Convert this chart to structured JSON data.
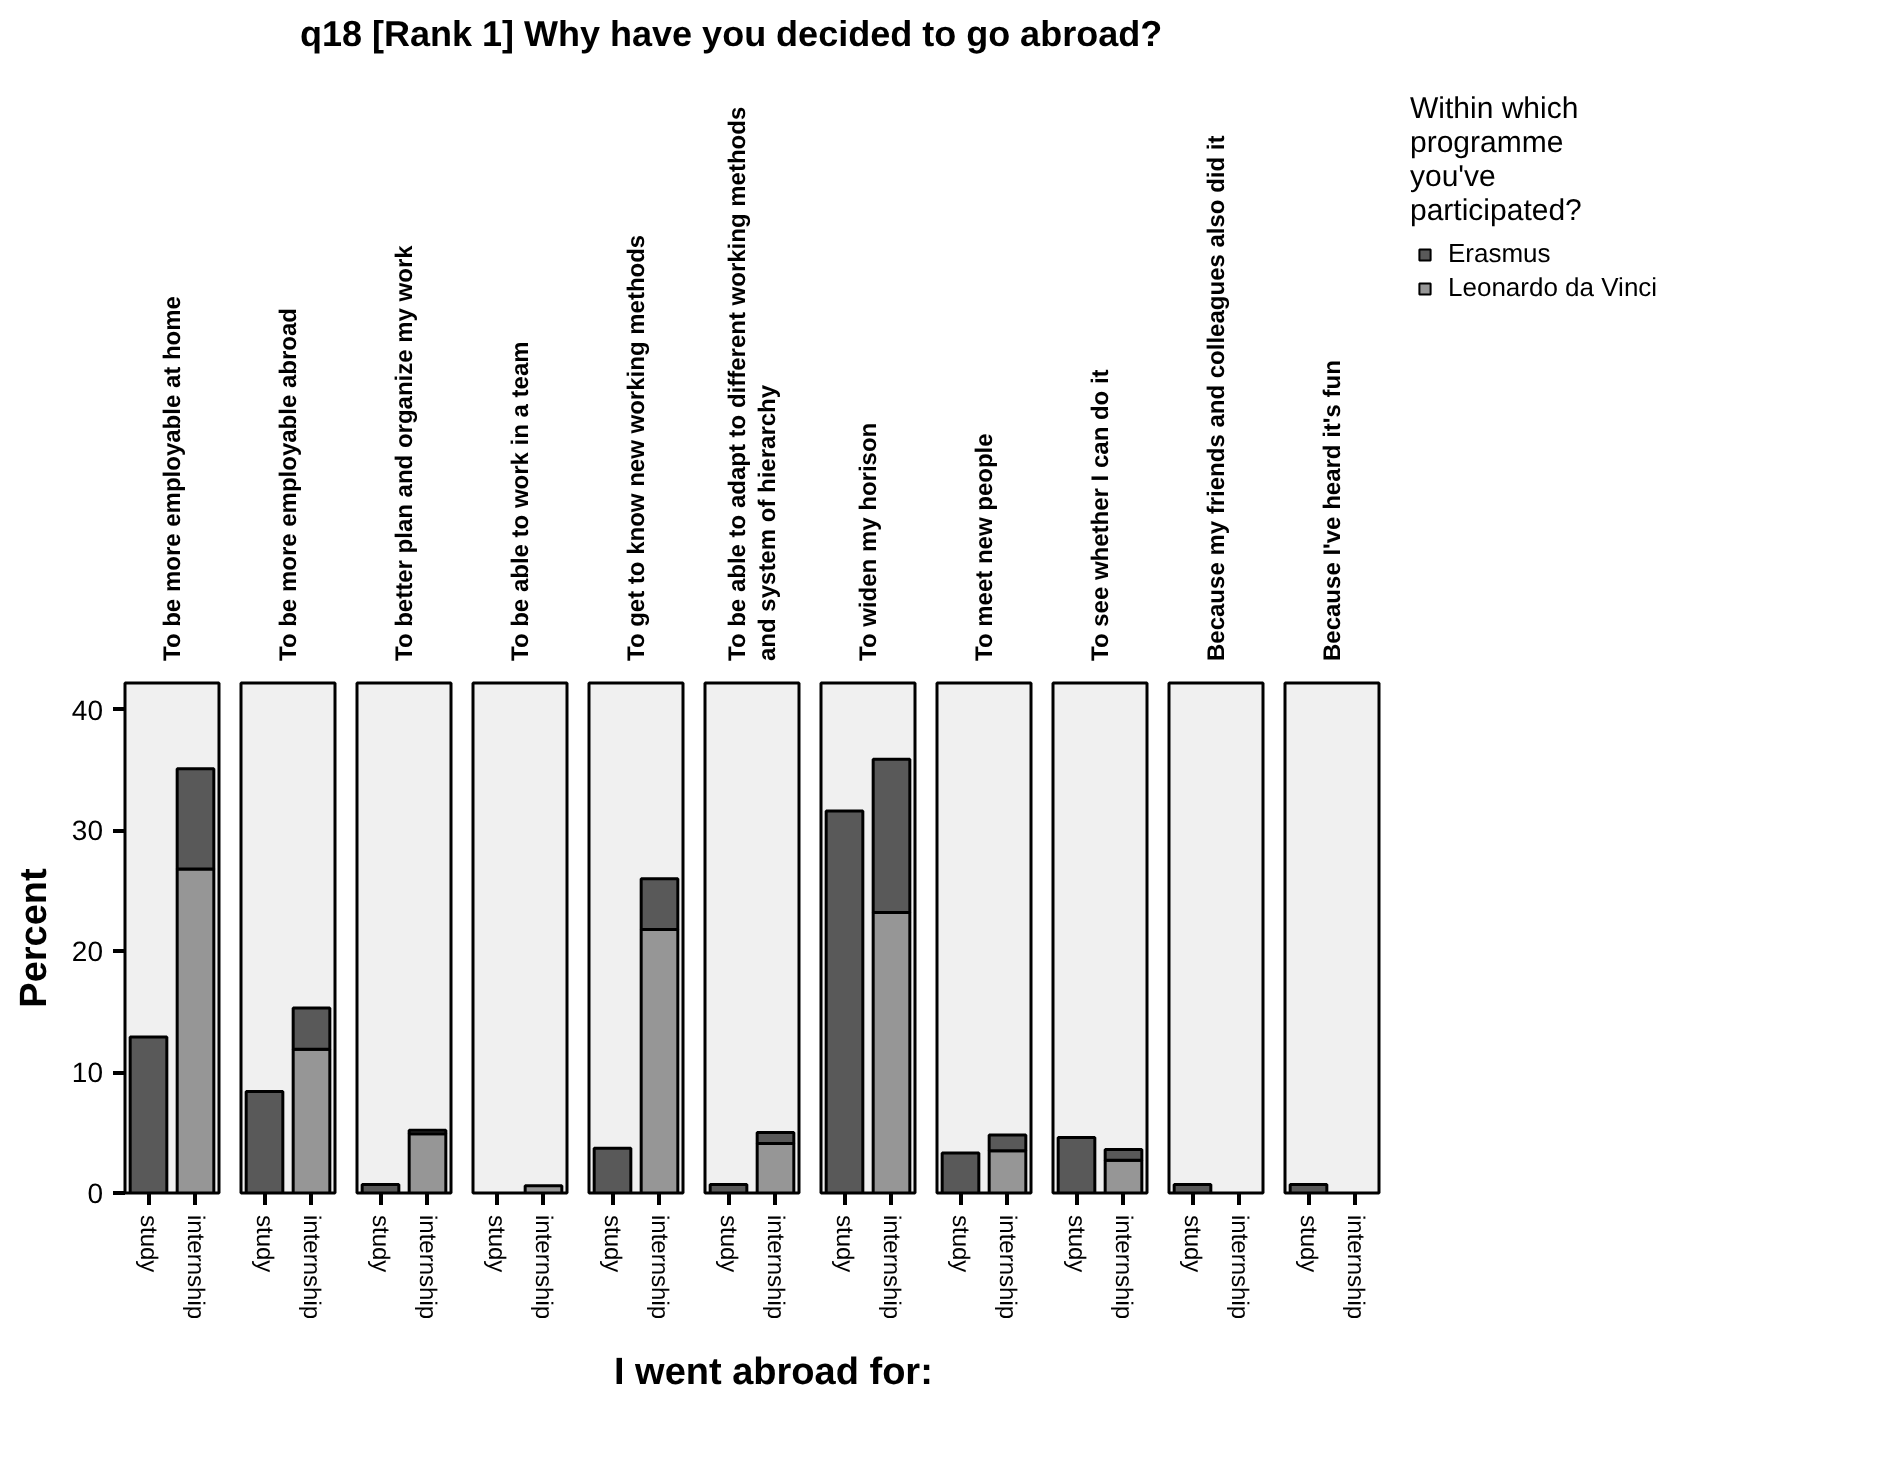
{
  "chart_data": [
    {
      "type": "bar",
      "stacked": true,
      "title": "To be more employable at home",
      "annotations": [
        "q18 [Rank 1] Why have you decided to go abroad?"
      ],
      "ylabel": "Percent",
      "categories": [
        "study",
        "internship"
      ],
      "ylim": [
        0,
        42.2
      ],
      "yticks": [
        0,
        10,
        20,
        30,
        40
      ],
      "grid": false,
      "series": [
        {
          "color": "#969696",
          "values": [
            null,
            26.8
          ]
        },
        {
          "color": "#595959",
          "values": [
            12.9,
            8.3
          ]
        }
      ]
    },
    {
      "type": "bar",
      "stacked": true,
      "title": "To be more employable abroad",
      "categories": [
        "study",
        "internship"
      ],
      "ylim": [
        0,
        42.2
      ],
      "tick_labels": "x",
      "grid": false,
      "series": [
        {
          "color": "#969696",
          "values": [
            null,
            11.9
          ]
        },
        {
          "color": "#595959",
          "values": [
            8.4,
            3.4
          ]
        }
      ]
    },
    {
      "type": "bar",
      "stacked": true,
      "title": "To better plan and organize my work",
      "categories": [
        "study",
        "internship"
      ],
      "ylim": [
        0,
        42.2
      ],
      "tick_labels": "x",
      "grid": false,
      "series": [
        {
          "color": "#969696",
          "values": [
            null,
            4.9
          ]
        },
        {
          "color": "#595959",
          "values": [
            0.7,
            0.3
          ]
        }
      ]
    },
    {
      "type": "bar",
      "stacked": true,
      "title": "To be able to work in a team",
      "categories": [
        "study",
        "internship"
      ],
      "ylim": [
        0,
        42.2
      ],
      "tick_labels": "x",
      "grid": false,
      "series": [
        {
          "color": "#969696",
          "values": [
            null,
            0.6
          ]
        }
      ]
    },
    {
      "type": "bar",
      "stacked": true,
      "title": "To get to know new working methods",
      "categories": [
        "study",
        "internship"
      ],
      "ylim": [
        0,
        42.2
      ],
      "tick_labels": "x",
      "grid": false,
      "series": [
        {
          "color": "#969696",
          "values": [
            null,
            21.8
          ]
        },
        {
          "color": "#595959",
          "values": [
            3.7,
            4.2
          ]
        }
      ]
    },
    {
      "type": "bar",
      "stacked": true,
      "title": "To be able to adapt to different working methods\nand system of hierarchy",
      "xlabel": "I went abroad for:",
      "categories": [
        "study",
        "internship"
      ],
      "ylim": [
        0,
        42.2
      ],
      "tick_labels": "x",
      "grid": false,
      "series": [
        {
          "color": "#969696",
          "values": [
            null,
            4.1
          ]
        },
        {
          "color": "#595959",
          "values": [
            0.7,
            0.9
          ]
        }
      ]
    },
    {
      "type": "bar",
      "stacked": true,
      "title": "To widen my horison",
      "categories": [
        "study",
        "internship"
      ],
      "ylim": [
        0,
        42.2
      ],
      "tick_labels": "x",
      "grid": false,
      "series": [
        {
          "color": "#969696",
          "values": [
            null,
            23.2
          ]
        },
        {
          "color": "#595959",
          "values": [
            31.6,
            12.7
          ]
        }
      ]
    },
    {
      "type": "bar",
      "stacked": true,
      "title": "To meet new people",
      "categories": [
        "study",
        "internship"
      ],
      "ylim": [
        0,
        42.2
      ],
      "tick_labels": "x",
      "grid": false,
      "series": [
        {
          "color": "#969696",
          "values": [
            null,
            3.5
          ]
        },
        {
          "color": "#595959",
          "values": [
            3.3,
            1.3
          ]
        }
      ]
    },
    {
      "type": "bar",
      "stacked": true,
      "title": "To see whether I can do it",
      "categories": [
        "study",
        "internship"
      ],
      "ylim": [
        0,
        42.2
      ],
      "tick_labels": "x",
      "grid": false,
      "series": [
        {
          "color": "#969696",
          "values": [
            null,
            2.7
          ]
        },
        {
          "color": "#595959",
          "values": [
            4.6,
            0.9
          ]
        }
      ]
    },
    {
      "type": "bar",
      "stacked": true,
      "title": "Because my friends and colleagues also did it",
      "categories": [
        "study",
        "internship"
      ],
      "ylim": [
        0,
        42.2
      ],
      "tick_labels": "x",
      "grid": false,
      "series": [
        {
          "color": "#595959",
          "values": [
            0.7,
            null
          ]
        }
      ]
    },
    {
      "type": "bar",
      "stacked": true,
      "title": "Because I've heard it's fun",
      "categories": [
        "study",
        "internship"
      ],
      "ylim": [
        0,
        42.2
      ],
      "tick_labels": "x",
      "grid": false,
      "legend": "right",
      "legend_title": "Within which\nprogramme\nyou've\nparticipated?",
      "series": [
        {
          "name": "Leonardo da Vinci",
          "color": "#969696",
          "values": [
            null,
            null
          ]
        },
        {
          "name": "Erasmus",
          "color": "#595959",
          "values": [
            0.7,
            null
          ]
        }
      ]
    }
  ]
}
